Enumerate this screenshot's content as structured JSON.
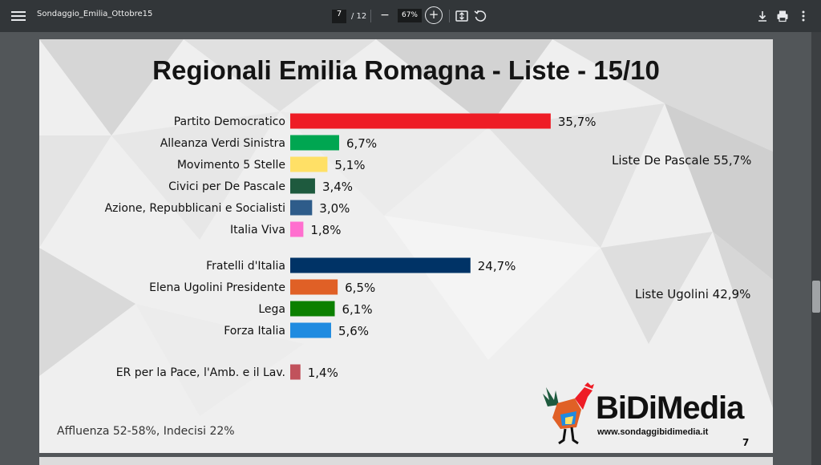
{
  "toolbar": {
    "doc_title": "Sondaggio_Emilia_Ottobre15",
    "page_current": "7",
    "page_total": "/ 12",
    "zoom": "67%"
  },
  "page": {
    "page_number": "7",
    "footnote": "Affluenza 52-58%, Indecisi 22%",
    "group_labels": [
      "Liste De Pascale 55,7%",
      "Liste Ugolini 42,9%"
    ],
    "logo_text": "BiDiMedia",
    "logo_url": "www.sondaggibidimedia.it"
  },
  "chart_data": {
    "type": "bar",
    "orientation": "horizontal",
    "title": "Regionali Emilia Romagna - Liste - 15/10",
    "categories": [
      "Partito Democratico",
      "Alleanza Verdi Sinistra",
      "Movimento 5 Stelle",
      "Civici per De Pascale",
      "Azione, Repubblicani e Socialisti",
      "Italia Viva",
      "Fratelli d'Italia",
      "Elena Ugolini Presidente",
      "Lega",
      "Forza Italia",
      "ER per la Pace, l'Amb. e il Lav."
    ],
    "values": [
      35.7,
      6.7,
      5.1,
      3.4,
      3.0,
      1.8,
      24.7,
      6.5,
      6.1,
      5.6,
      1.4
    ],
    "value_labels": [
      "35,7%",
      "6,7%",
      "5,1%",
      "3,4%",
      "3,0%",
      "1,8%",
      "24,7%",
      "6,5%",
      "6,1%",
      "5,6%",
      "1,4%"
    ],
    "colors": [
      "#ee1c25",
      "#00a651",
      "#ffe066",
      "#1e5a3e",
      "#2e5c8a",
      "#ff6fcf",
      "#003366",
      "#e06026",
      "#0b8000",
      "#1f8be0",
      "#c1525c"
    ],
    "groups": [
      0,
      0,
      0,
      0,
      0,
      0,
      1,
      1,
      1,
      1,
      2
    ],
    "xlim": [
      0,
      40
    ],
    "grid": false,
    "legend": "none"
  }
}
